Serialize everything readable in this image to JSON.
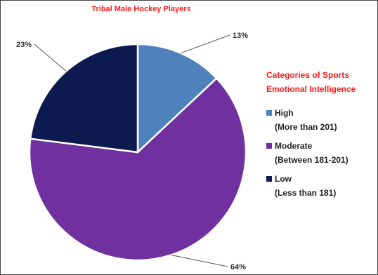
{
  "chart_data": {
    "type": "pie",
    "title": "Tribal Male Hockey Players",
    "legend_title": "Categories of Sports Emotional Intelligence",
    "legend_position": "right",
    "slices": [
      {
        "category": "High",
        "range": "(More than 201)",
        "value": 13,
        "label": "13%",
        "color": "#4f81bd"
      },
      {
        "category": "Moderate",
        "range": "(Between 181-201)",
        "value": 64,
        "label": "64%",
        "color": "#7030a0"
      },
      {
        "category": "Low",
        "range": "(Less than 181)",
        "value": 23,
        "label": "23%",
        "color": "#0d1a4f"
      }
    ]
  }
}
